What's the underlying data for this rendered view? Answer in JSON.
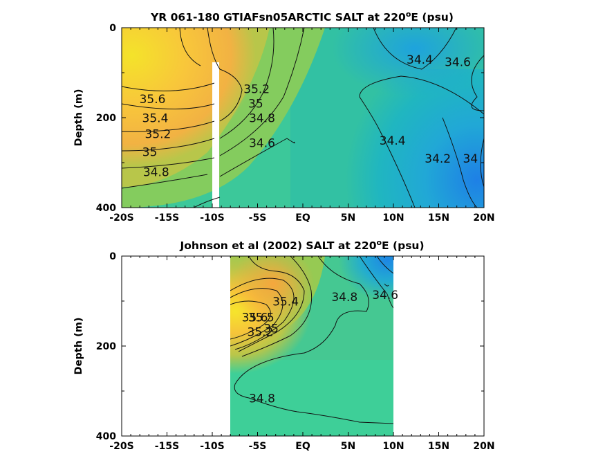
{
  "chart_data": [
    {
      "type": "heatmap",
      "title_parts": [
        "YR 061-180 GTIAFsn05ARCTIC SALT at 220",
        "o",
        "E (psu)"
      ],
      "xlabel": "",
      "ylabel": "Depth (m)",
      "xlim": [
        -20,
        20
      ],
      "ylim": [
        0,
        400
      ],
      "y_reversed": true,
      "xtick_labels": [
        "-20S",
        "-15S",
        "-10S",
        "-5S",
        "EQ",
        "5N",
        "10N",
        "15N",
        "20N"
      ],
      "ytick_labels": [
        "0",
        "200",
        "400"
      ],
      "data_extent_x": [
        -20,
        20
      ],
      "masked_column_x": -9.7,
      "masked_column_depth_from": 80,
      "contour_labels": [
        {
          "text": "35.6",
          "x": -16.6,
          "depth": 168
        },
        {
          "text": "35.4",
          "x": -16.3,
          "depth": 210
        },
        {
          "text": "35.2",
          "x": -16.0,
          "depth": 245
        },
        {
          "text": "35",
          "x": -16.9,
          "depth": 285
        },
        {
          "text": "34.8",
          "x": -16.2,
          "depth": 330
        },
        {
          "text": "35.2",
          "x": -5.1,
          "depth": 145
        },
        {
          "text": "35",
          "x": -5.2,
          "depth": 178
        },
        {
          "text": "34.8",
          "x": -4.5,
          "depth": 210
        },
        {
          "text": "34.6",
          "x": -4.5,
          "depth": 265
        },
        {
          "text": "34.4",
          "x": 12.9,
          "depth": 80
        },
        {
          "text": "34.6",
          "x": 17.1,
          "depth": 85
        },
        {
          "text": "34.4",
          "x": 9.9,
          "depth": 260
        },
        {
          "text": "34.2",
          "x": 14.9,
          "depth": 300
        },
        {
          "text": "34",
          "x": 18.5,
          "depth": 300
        }
      ]
    },
    {
      "type": "heatmap",
      "title_parts": [
        "Johnson et al (2002) SALT at 220",
        "o",
        "E (psu)"
      ],
      "xlabel": "",
      "ylabel": "Depth (m)",
      "xlim": [
        -20,
        20
      ],
      "ylim": [
        0,
        400
      ],
      "y_reversed": true,
      "xtick_labels": [
        "-20S",
        "-15S",
        "-10S",
        "-5S",
        "EQ",
        "5N",
        "10N",
        "15N",
        "20N"
      ],
      "ytick_labels": [
        "0",
        "200",
        "400"
      ],
      "data_extent_x": [
        -8,
        10
      ],
      "contour_labels": [
        {
          "text": "35.6",
          "x": -5.3,
          "depth": 145
        },
        {
          "text": "35.5",
          "x": -4.6,
          "depth": 145
        },
        {
          "text": "35.2",
          "x": -4.7,
          "depth": 178
        },
        {
          "text": "35.4",
          "x": -1.9,
          "depth": 110
        },
        {
          "text": "35",
          "x": -3.5,
          "depth": 170
        },
        {
          "text": "34.8",
          "x": 4.6,
          "depth": 100
        },
        {
          "text": "34.6",
          "x": 9.1,
          "depth": 95
        },
        {
          "text": "34.8",
          "x": -4.5,
          "depth": 325
        }
      ]
    }
  ]
}
